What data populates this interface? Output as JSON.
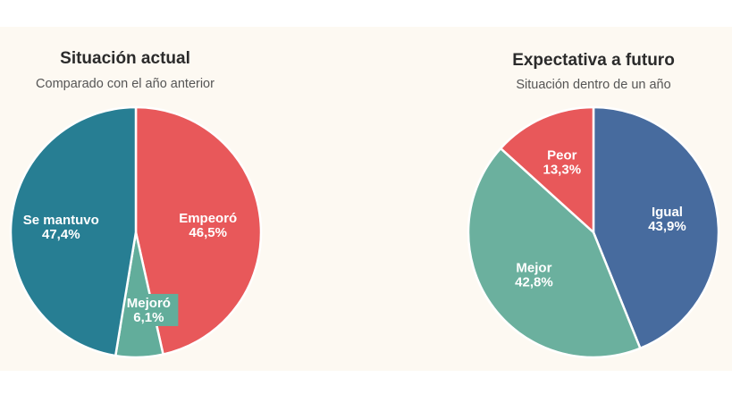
{
  "chart_data": [
    {
      "type": "pie",
      "title": "Situación actual",
      "subtitle": "Comparado con el año anterior",
      "slices": [
        {
          "label": "Empeoró",
          "value": 46.5,
          "text": "46,5%",
          "color": "#e8585a"
        },
        {
          "label": "Mejoró",
          "value": 6.1,
          "text": "6,1%",
          "color": "#62ad9b"
        },
        {
          "label": "Se mantuvo",
          "value": 47.4,
          "text": "47,4%",
          "color": "#277e93"
        }
      ]
    },
    {
      "type": "pie",
      "title": "Expectativa a futuro",
      "subtitle": "Situación dentro de un año",
      "slices": [
        {
          "label": "Igual",
          "value": 43.9,
          "text": "43,9%",
          "color": "#476b9e"
        },
        {
          "label": "Mejor",
          "value": 42.8,
          "text": "42,8%",
          "color": "#6bb09e"
        },
        {
          "label": "Peor",
          "value": 13.3,
          "text": "13,3%",
          "color": "#e8585a"
        }
      ]
    }
  ]
}
